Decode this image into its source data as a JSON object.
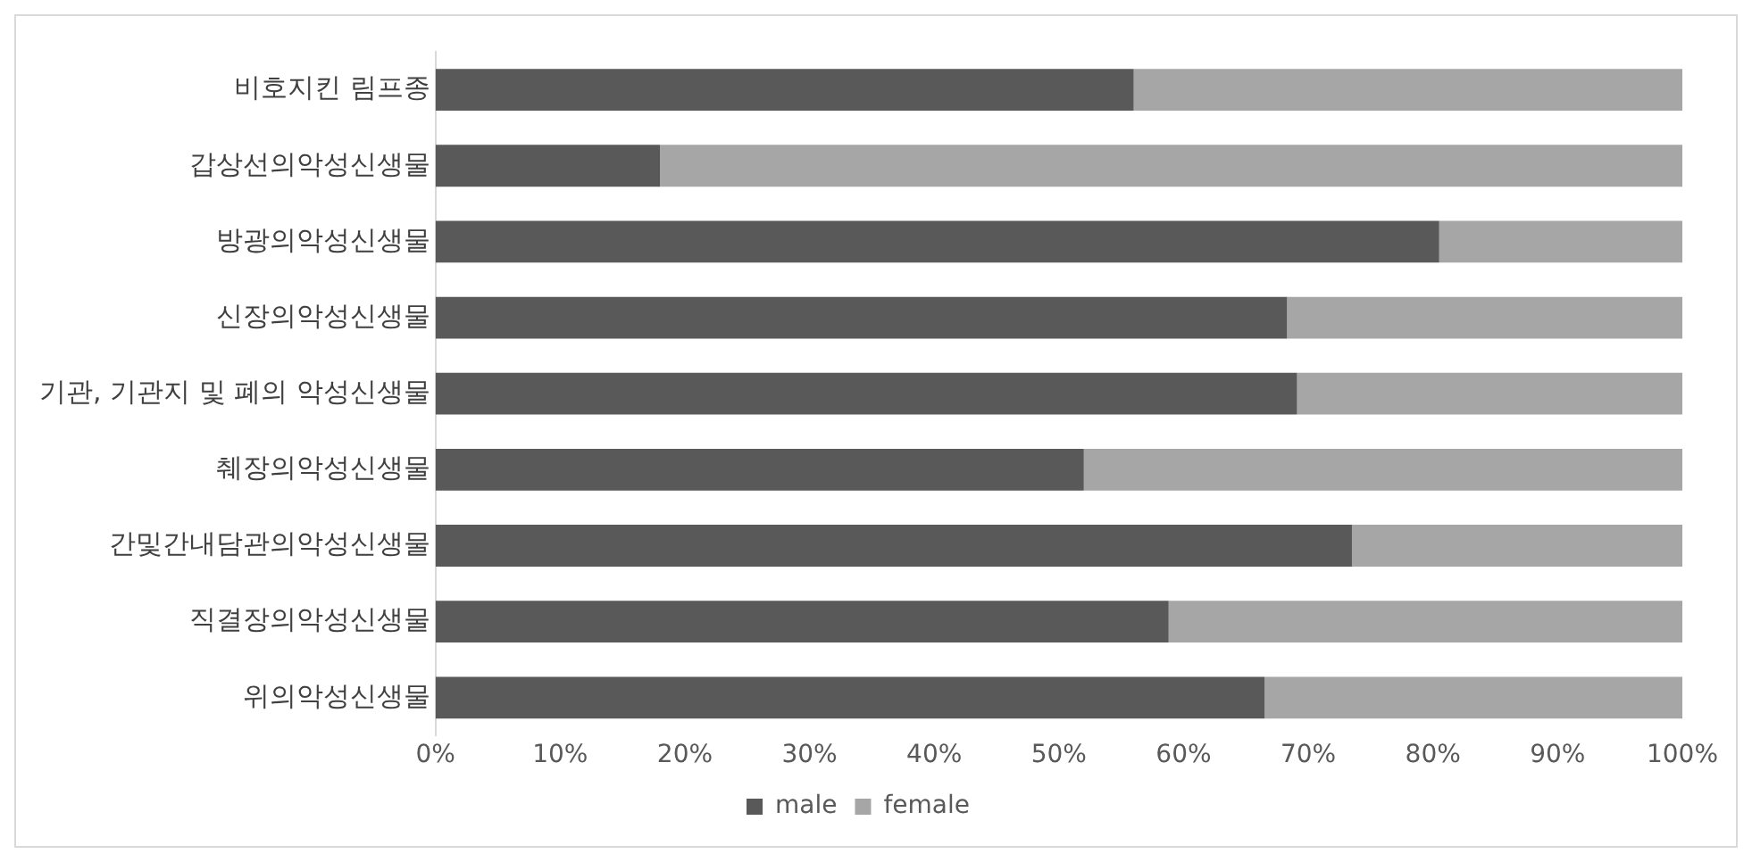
{
  "chart_data": {
    "type": "bar",
    "orientation": "horizontal",
    "stacked": true,
    "categories": [
      "비호지킨 림프종",
      "갑상선의악성신생물",
      "방광의악성신생물",
      "신장의악성신생물",
      "기관, 기관지 및 폐의 악성신생물",
      "췌장의악성신생물",
      "간및간내담관의악성신생물",
      "직결장의악성신생물",
      "위의악성신생물"
    ],
    "series": [
      {
        "name": "male",
        "color": "#595959",
        "values": [
          56,
          18,
          80.5,
          68.3,
          69.1,
          52,
          73.5,
          58.8,
          66.5
        ]
      },
      {
        "name": "female",
        "color": "#a6a6a6",
        "values": [
          44,
          82,
          19.5,
          31.7,
          30.9,
          48,
          26.5,
          41.2,
          33.5
        ]
      }
    ],
    "xlim": [
      0,
      100
    ],
    "xticks": [
      {
        "value": 0,
        "label": "0%"
      },
      {
        "value": 10,
        "label": "10%"
      },
      {
        "value": 20,
        "label": "20%"
      },
      {
        "value": 30,
        "label": "30%"
      },
      {
        "value": 40,
        "label": "40%"
      },
      {
        "value": 50,
        "label": "50%"
      },
      {
        "value": 60,
        "label": "60%"
      },
      {
        "value": 70,
        "label": "70%"
      },
      {
        "value": 80,
        "label": "80%"
      },
      {
        "value": 90,
        "label": "90%"
      },
      {
        "value": 100,
        "label": "100%"
      }
    ],
    "grid": false,
    "legend": "bottom"
  }
}
